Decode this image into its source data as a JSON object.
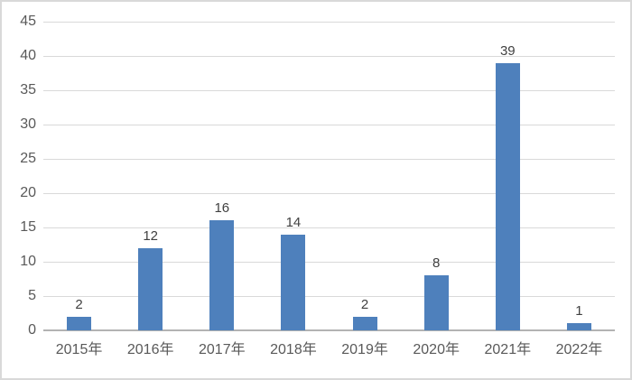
{
  "chart_data": {
    "type": "bar",
    "title": "",
    "xlabel": "",
    "ylabel": "",
    "categories": [
      "2015年",
      "2016年",
      "2017年",
      "2018年",
      "2019年",
      "2020年",
      "2021年",
      "2022年"
    ],
    "values": [
      2,
      12,
      16,
      14,
      2,
      8,
      39,
      1
    ],
    "data_labels": [
      "2",
      "12",
      "16",
      "14",
      "2",
      "8",
      "39",
      "1"
    ],
    "ylim": [
      0,
      45
    ],
    "ytick_step": 5,
    "ytick_labels": [
      "0",
      "5",
      "10",
      "15",
      "20",
      "25",
      "30",
      "35",
      "40",
      "45"
    ],
    "grid": true,
    "legend": null,
    "show_data_labels": true,
    "colors": {
      "bar": "#4e80bc",
      "gridline": "#d9d9d9",
      "axis_line": "#b3b3b3",
      "axis_text": "#595959",
      "data_label_text": "#404040",
      "figure_border": "#d9d9d9",
      "background": "#ffffff"
    }
  }
}
